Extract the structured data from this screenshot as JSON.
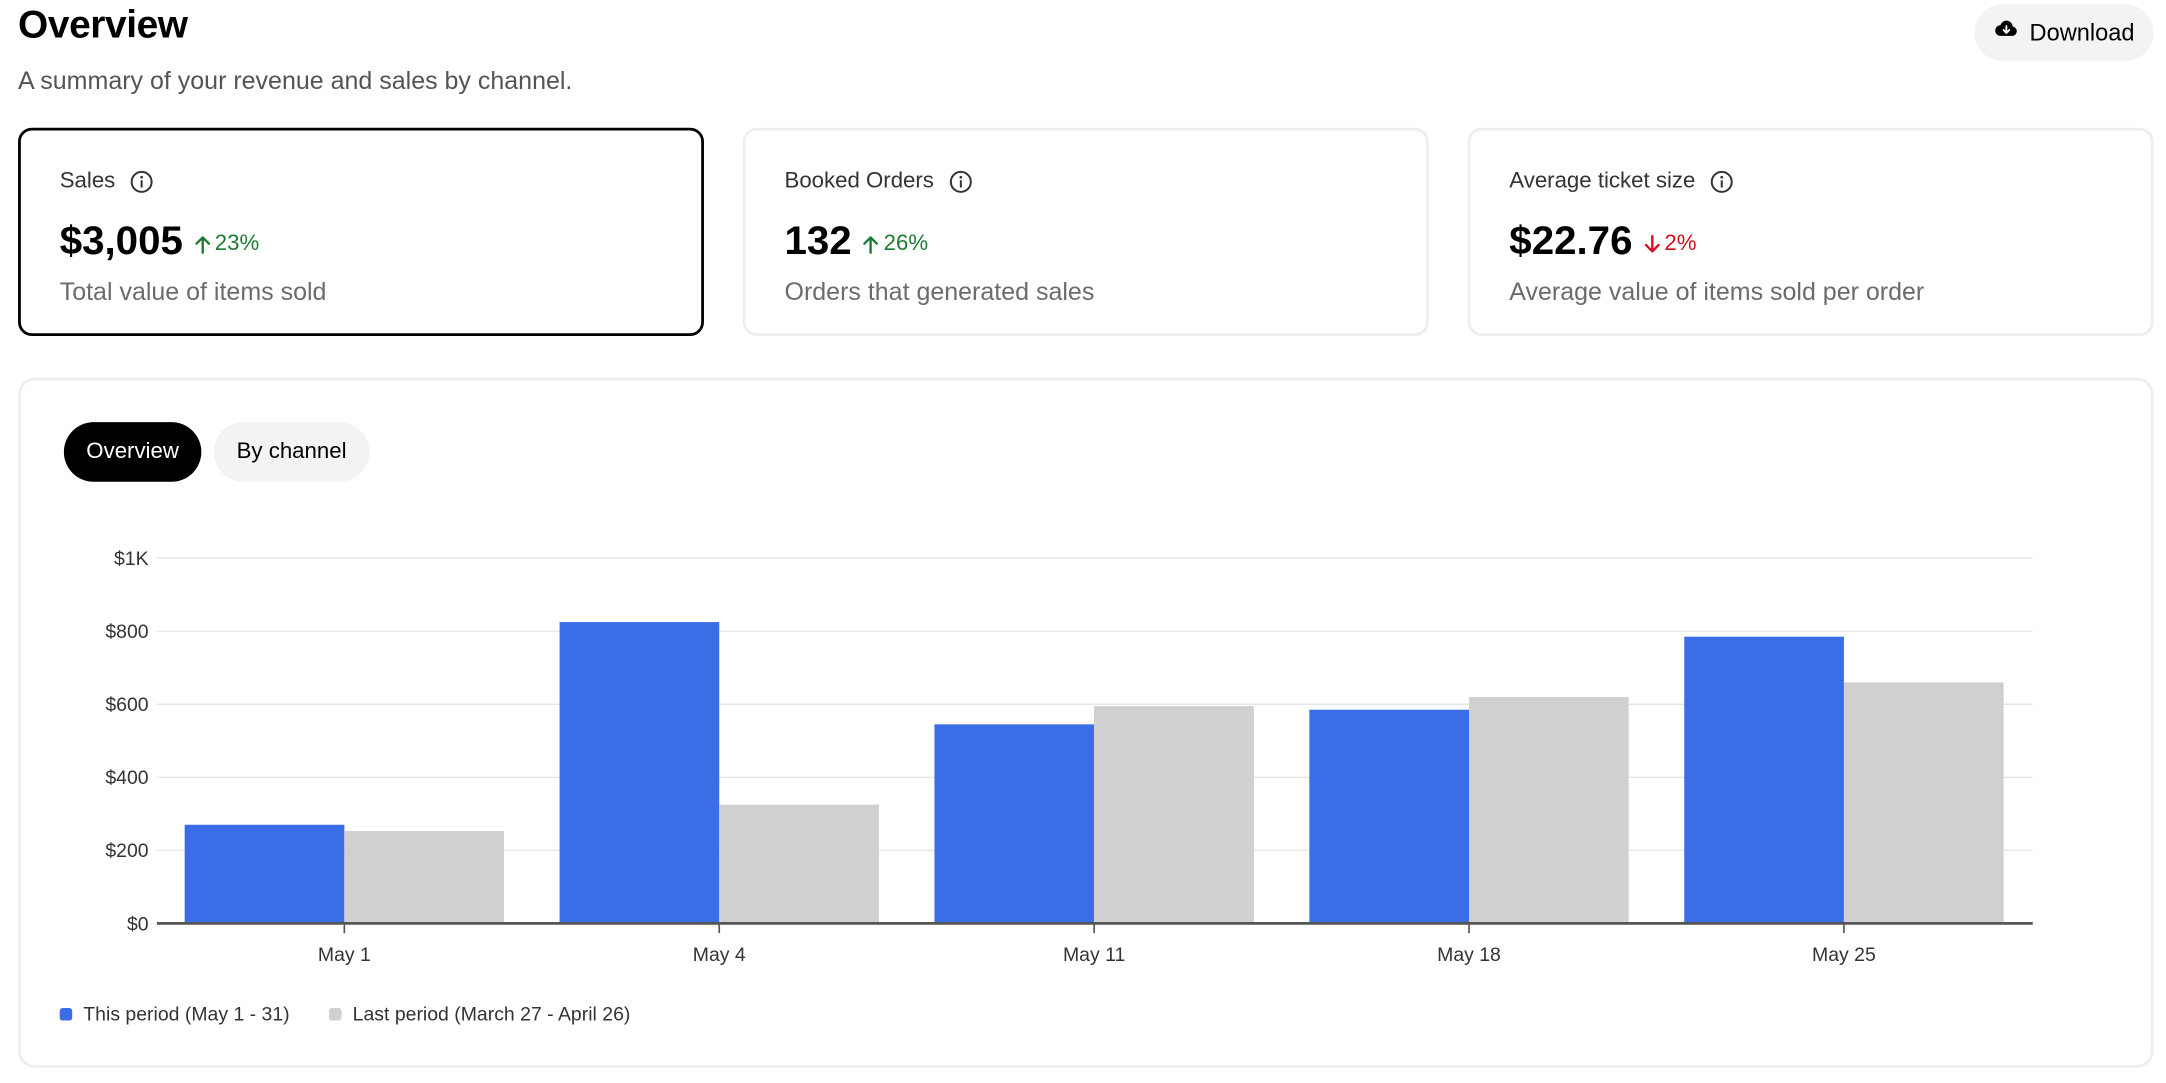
{
  "header": {
    "title": "Overview",
    "subtitle": "A summary of your revenue and sales by channel.",
    "download_label": "Download",
    "download_icon": "cloud-download-icon"
  },
  "cards": [
    {
      "label": "Sales",
      "value": "$3,005",
      "delta": "23%",
      "direction": "up",
      "description": "Total value of items sold",
      "selected": true
    },
    {
      "label": "Booked Orders",
      "value": "132",
      "delta": "26%",
      "direction": "up",
      "description": "Orders that generated sales",
      "selected": false
    },
    {
      "label": "Average ticket size",
      "value": "$22.76",
      "delta": "2%",
      "direction": "down",
      "description": "Average value of items sold per order",
      "selected": false
    }
  ],
  "tabs": [
    {
      "label": "Overview",
      "active": true
    },
    {
      "label": "By channel",
      "active": false
    }
  ],
  "colors": {
    "this_period": "#3b6ee6",
    "last_period": "#d0d0d0",
    "up": "#1f7a33",
    "down": "#d00f1f"
  },
  "chart_data": {
    "type": "bar",
    "categories": [
      "May 1",
      "May 4",
      "May 11",
      "May 18",
      "May 25"
    ],
    "series": [
      {
        "name": "This period (May 1 - 31)",
        "values": [
          270,
          825,
          545,
          585,
          785
        ]
      },
      {
        "name": "Last period (March 27 - April 26)",
        "values": [
          253,
          325,
          595,
          620,
          660
        ]
      }
    ],
    "yticks": [
      {
        "value": 0,
        "label": "$0"
      },
      {
        "value": 200,
        "label": "$200"
      },
      {
        "value": 400,
        "label": "$400"
      },
      {
        "value": 600,
        "label": "$600"
      },
      {
        "value": 800,
        "label": "$800"
      },
      {
        "value": 1000,
        "label": "$1K"
      }
    ],
    "ylim": [
      0,
      1000
    ],
    "grid": true,
    "legend_position": "bottom-left"
  }
}
